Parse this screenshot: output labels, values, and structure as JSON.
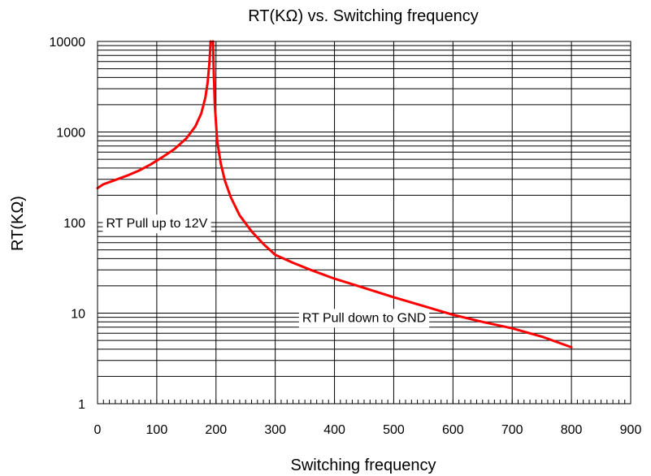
{
  "chart_data": {
    "type": "line",
    "title": "RT(KΩ) vs. Switching frequency",
    "xlabel": "Switching frequency",
    "ylabel": "RT(KΩ)",
    "xlim": [
      0,
      900
    ],
    "ylim": [
      1,
      10000
    ],
    "yscale": "log",
    "grid": true,
    "x_ticks": [
      0,
      100,
      200,
      300,
      400,
      500,
      600,
      700,
      800,
      900
    ],
    "y_ticks": [
      1,
      10,
      100,
      1000,
      10000
    ],
    "x_tick_labels": [
      "0",
      "100",
      "200",
      "300",
      "400",
      "500",
      "600",
      "700",
      "800",
      "900"
    ],
    "y_tick_labels": [
      "1",
      "10",
      "100",
      "1000",
      "10000"
    ],
    "series": [
      {
        "color": "#ff0000",
        "points": [
          [
            0,
            240
          ],
          [
            10,
            265
          ],
          [
            30,
            295
          ],
          [
            50,
            330
          ],
          [
            70,
            375
          ],
          [
            90,
            440
          ],
          [
            110,
            530
          ],
          [
            130,
            650
          ],
          [
            150,
            850
          ],
          [
            165,
            1150
          ],
          [
            175,
            1600
          ],
          [
            182,
            2400
          ],
          [
            186,
            3600
          ],
          [
            189,
            6000
          ],
          [
            191,
            10000
          ]
        ]
      },
      {
        "color": "#ff0000",
        "points": [
          [
            195,
            10000
          ],
          [
            196,
            5000
          ],
          [
            198,
            2000
          ],
          [
            202,
            800
          ],
          [
            208,
            450
          ],
          [
            215,
            290
          ],
          [
            225,
            190
          ],
          [
            240,
            120
          ],
          [
            260,
            80
          ],
          [
            280,
            58
          ],
          [
            300,
            44
          ],
          [
            330,
            36
          ],
          [
            360,
            30
          ],
          [
            400,
            24
          ],
          [
            450,
            19
          ],
          [
            500,
            15
          ],
          [
            550,
            12
          ],
          [
            600,
            9.6
          ],
          [
            650,
            8
          ],
          [
            700,
            6.8
          ],
          [
            750,
            5.5
          ],
          [
            800,
            4.2
          ]
        ]
      }
    ],
    "annotations": [
      {
        "text": "RT Pull up to 12V",
        "x": 100,
        "y": 88
      },
      {
        "text": "RT Pull down to GND",
        "x": 450,
        "y": 8
      }
    ]
  }
}
